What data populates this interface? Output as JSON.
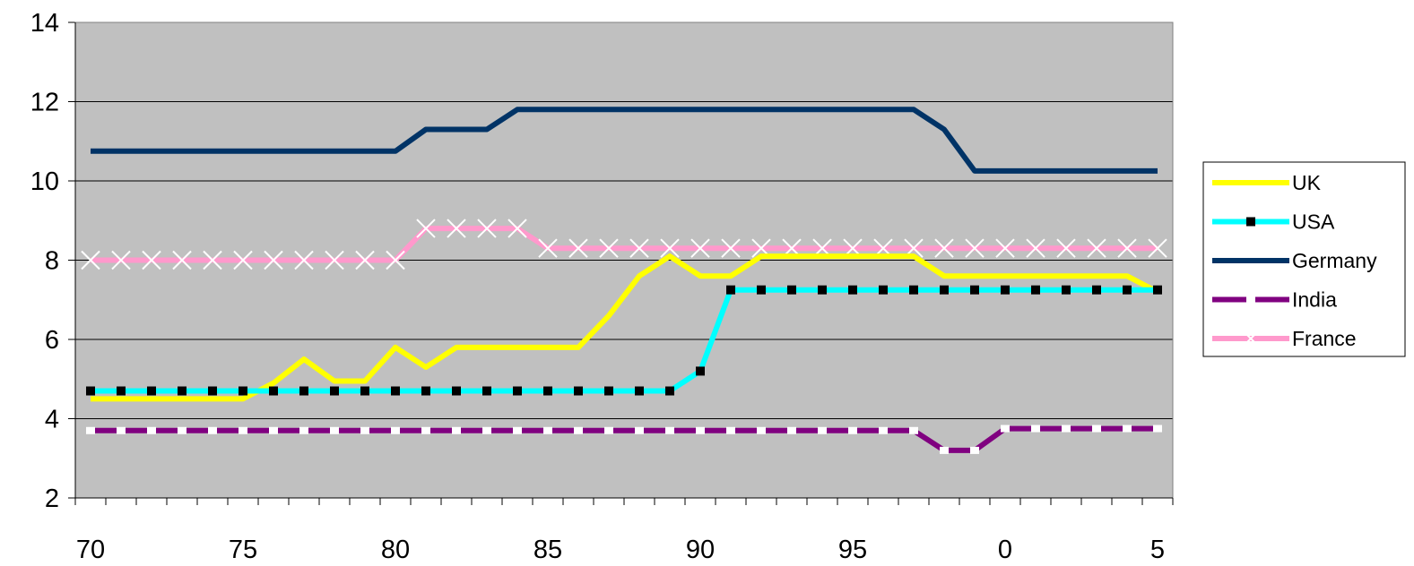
{
  "chart_data": {
    "type": "line",
    "title": "",
    "xlabel": "",
    "ylabel": "",
    "ylim": [
      2,
      14
    ],
    "yticks": [
      2,
      4,
      6,
      8,
      10,
      12,
      14
    ],
    "x_tick_labels": [
      "70",
      "75",
      "80",
      "85",
      "90",
      "95",
      "0",
      "5"
    ],
    "x": [
      1970,
      1971,
      1972,
      1973,
      1974,
      1975,
      1976,
      1977,
      1978,
      1979,
      1980,
      1981,
      1982,
      1983,
      1984,
      1985,
      1986,
      1987,
      1988,
      1989,
      1990,
      1991,
      1992,
      1993,
      1994,
      1995,
      1996,
      1997,
      1998,
      1999,
      2000,
      2001,
      2002,
      2003,
      2004,
      2005
    ],
    "grid": true,
    "plot_background": "#c0c0c0",
    "legend_position": "right",
    "series": [
      {
        "name": "UK",
        "color": "#ffff00",
        "marker": "none",
        "values": [
          4.5,
          4.5,
          4.5,
          4.5,
          4.5,
          4.5,
          4.9,
          5.5,
          4.95,
          4.95,
          5.8,
          5.3,
          5.8,
          5.8,
          5.8,
          5.8,
          5.8,
          6.6,
          7.6,
          8.1,
          7.6,
          7.6,
          8.1,
          8.1,
          8.1,
          8.1,
          8.1,
          8.1,
          7.6,
          7.6,
          7.6,
          7.6,
          7.6,
          7.6,
          7.6,
          7.2
        ]
      },
      {
        "name": "USA",
        "color": "#00ffff",
        "marker": "black-square",
        "values": [
          4.7,
          4.7,
          4.7,
          4.7,
          4.7,
          4.7,
          4.7,
          4.7,
          4.7,
          4.7,
          4.7,
          4.7,
          4.7,
          4.7,
          4.7,
          4.7,
          4.7,
          4.7,
          4.7,
          4.7,
          5.2,
          7.25,
          7.25,
          7.25,
          7.25,
          7.25,
          7.25,
          7.25,
          7.25,
          7.25,
          7.25,
          7.25,
          7.25,
          7.25,
          7.25,
          7.25
        ]
      },
      {
        "name": "Germany",
        "color": "#003366",
        "marker": "none",
        "values": [
          10.75,
          10.75,
          10.75,
          10.75,
          10.75,
          10.75,
          10.75,
          10.75,
          10.75,
          10.75,
          10.75,
          11.3,
          11.3,
          11.3,
          11.8,
          11.8,
          11.8,
          11.8,
          11.8,
          11.8,
          11.8,
          11.8,
          11.8,
          11.8,
          11.8,
          11.8,
          11.8,
          11.8,
          11.3,
          10.25,
          10.25,
          10.25,
          10.25,
          10.25,
          10.25,
          10.25
        ]
      },
      {
        "name": "India",
        "color": "#800080",
        "marker": "white-square",
        "values": [
          3.7,
          3.7,
          3.7,
          3.7,
          3.7,
          3.7,
          3.7,
          3.7,
          3.7,
          3.7,
          3.7,
          3.7,
          3.7,
          3.7,
          3.7,
          3.7,
          3.7,
          3.7,
          3.7,
          3.7,
          3.7,
          3.7,
          3.7,
          3.7,
          3.7,
          3.7,
          3.7,
          3.7,
          3.2,
          3.2,
          3.75,
          3.75,
          3.75,
          3.75,
          3.75,
          3.75
        ]
      },
      {
        "name": "France",
        "color": "#ff99cc",
        "marker": "white-x",
        "values": [
          8,
          8,
          8,
          8,
          8,
          8,
          8,
          8,
          8,
          8,
          8,
          8.8,
          8.8,
          8.8,
          8.8,
          8.3,
          8.3,
          8.3,
          8.3,
          8.3,
          8.3,
          8.3,
          8.3,
          8.3,
          8.3,
          8.3,
          8.3,
          8.3,
          8.3,
          8.3,
          8.3,
          8.3,
          8.3,
          8.3,
          8.3,
          8.3
        ]
      }
    ]
  }
}
